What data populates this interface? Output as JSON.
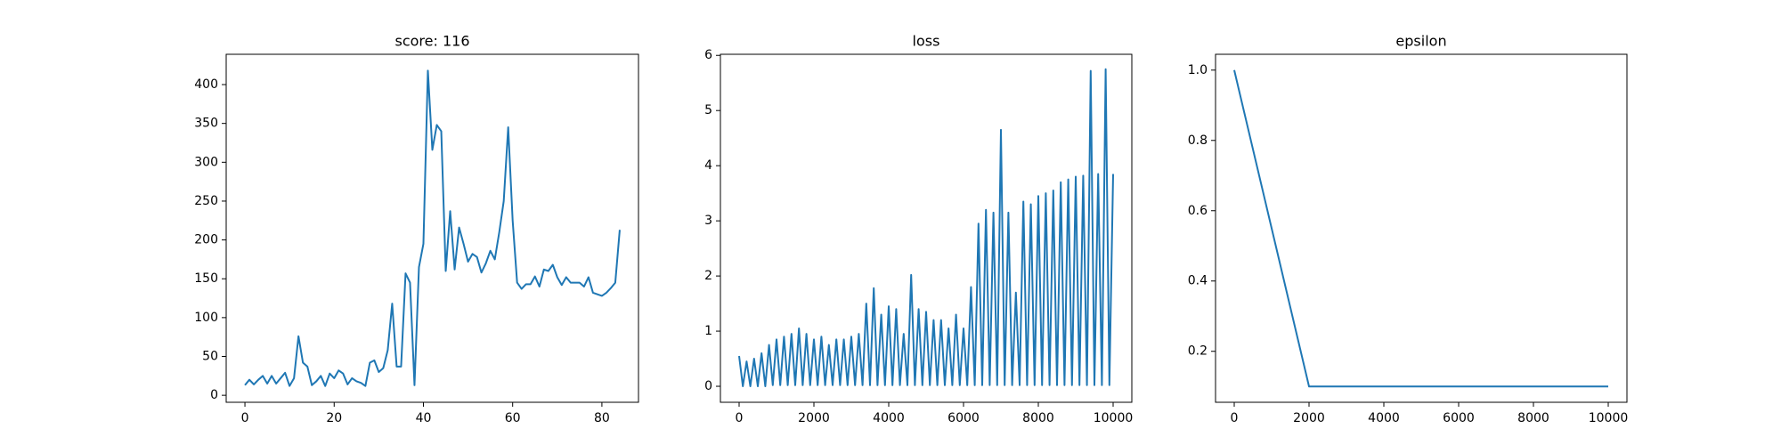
{
  "chart_data": [
    {
      "type": "line",
      "title": "score: 116",
      "color": "#1f77b4",
      "x": [
        0,
        1,
        2,
        3,
        4,
        5,
        6,
        7,
        8,
        9,
        10,
        11,
        12,
        13,
        14,
        15,
        16,
        17,
        18,
        19,
        20,
        21,
        22,
        23,
        24,
        25,
        26,
        27,
        28,
        29,
        30,
        31,
        32,
        33,
        34,
        35,
        36,
        37,
        38,
        39,
        40,
        41,
        42,
        43,
        44,
        45,
        46,
        47,
        48,
        49,
        50,
        51,
        52,
        53,
        54,
        55,
        56,
        57,
        58,
        59,
        60,
        61,
        62,
        63,
        64,
        65,
        66,
        67,
        68,
        69,
        70,
        71,
        72,
        73,
        74,
        75,
        76,
        77,
        78,
        79,
        80,
        81,
        82,
        83,
        84
      ],
      "values": [
        13,
        20,
        14,
        20,
        25,
        15,
        25,
        15,
        22,
        29,
        12,
        22,
        76,
        42,
        37,
        13,
        18,
        25,
        12,
        28,
        22,
        32,
        28,
        14,
        22,
        18,
        16,
        12,
        42,
        45,
        30,
        35,
        58,
        118,
        37,
        37,
        157,
        145,
        13,
        165,
        195,
        418,
        316,
        348,
        340,
        160,
        237,
        162,
        216,
        195,
        172,
        182,
        178,
        158,
        170,
        186,
        175,
        210,
        250,
        345,
        225,
        145,
        137,
        143,
        143,
        153,
        140,
        162,
        160,
        168,
        152,
        142,
        152,
        145,
        145,
        145,
        140,
        152,
        132,
        130,
        128,
        132,
        138,
        145,
        213
      ],
      "xlim": [
        -4.2,
        88.2
      ],
      "ylim": [
        -9,
        439
      ],
      "xticks": [
        0,
        20,
        40,
        60,
        80
      ],
      "yticks": [
        0,
        50,
        100,
        150,
        200,
        250,
        300,
        350,
        400
      ]
    },
    {
      "type": "line",
      "title": "loss",
      "color": "#1f77b4",
      "x": [
        0,
        100,
        200,
        300,
        400,
        500,
        600,
        700,
        800,
        900,
        1000,
        1100,
        1200,
        1300,
        1400,
        1500,
        1600,
        1700,
        1800,
        1900,
        2000,
        2100,
        2200,
        2300,
        2400,
        2500,
        2600,
        2700,
        2800,
        2900,
        3000,
        3100,
        3200,
        3300,
        3400,
        3500,
        3600,
        3700,
        3800,
        3900,
        4000,
        4100,
        4200,
        4300,
        4400,
        4500,
        4600,
        4700,
        4800,
        4900,
        5000,
        5100,
        5200,
        5300,
        5400,
        5500,
        5600,
        5700,
        5800,
        5900,
        6000,
        6100,
        6200,
        6300,
        6400,
        6500,
        6600,
        6700,
        6800,
        6900,
        7000,
        7100,
        7200,
        7300,
        7400,
        7500,
        7600,
        7700,
        7800,
        7900,
        8000,
        8100,
        8200,
        8300,
        8400,
        8500,
        8600,
        8700,
        8800,
        8900,
        9000,
        9100,
        9200,
        9300,
        9400,
        9500,
        9600,
        9700,
        9800,
        9900,
        10000
      ],
      "values": [
        0.55,
        0,
        0.45,
        0,
        0.5,
        0,
        0.6,
        0,
        0.75,
        0.02,
        0.85,
        0.02,
        0.9,
        0.02,
        0.95,
        0.02,
        1.05,
        0.02,
        0.95,
        0.02,
        0.85,
        0.02,
        0.9,
        0.02,
        0.75,
        0.02,
        0.85,
        0.02,
        0.85,
        0.02,
        0.9,
        0.02,
        0.95,
        0.02,
        1.5,
        0.02,
        1.78,
        0.02,
        1.3,
        0.02,
        1.45,
        0.02,
        1.4,
        0.02,
        0.95,
        0.02,
        2.02,
        0.02,
        1.4,
        0.02,
        1.35,
        0.02,
        1.2,
        0.02,
        1.2,
        0.02,
        1.05,
        0.02,
        1.3,
        0.02,
        1.05,
        0.02,
        1.8,
        0.02,
        2.95,
        0.02,
        3.2,
        0.02,
        3.15,
        0.02,
        4.65,
        0.02,
        3.15,
        0.02,
        1.7,
        0.02,
        3.35,
        0.02,
        3.3,
        0.02,
        3.45,
        0.02,
        3.5,
        0.02,
        3.55,
        0.02,
        3.7,
        0.02,
        3.75,
        0.02,
        3.8,
        0.02,
        3.82,
        0.02,
        5.72,
        0.02,
        3.85,
        0.02,
        5.75,
        0.02,
        3.85
      ],
      "xlim": [
        -500,
        10500
      ],
      "ylim": [
        -0.29,
        6.02
      ],
      "xticks": [
        0,
        2000,
        4000,
        6000,
        8000,
        10000
      ],
      "yticks": [
        0,
        1,
        2,
        3,
        4,
        5,
        6
      ]
    },
    {
      "type": "line",
      "title": "epsilon",
      "color": "#1f77b4",
      "x": [
        0,
        2000,
        10000
      ],
      "values": [
        1,
        0.1,
        0.1
      ],
      "xlim": [
        -500,
        10500
      ],
      "ylim": [
        0.055,
        1.045
      ],
      "xticks": [
        0,
        2000,
        4000,
        6000,
        8000,
        10000
      ],
      "yticks": [
        0.2,
        0.4,
        0.6,
        0.8,
        {
          "value": 1,
          "label": "1.0"
        }
      ]
    }
  ]
}
